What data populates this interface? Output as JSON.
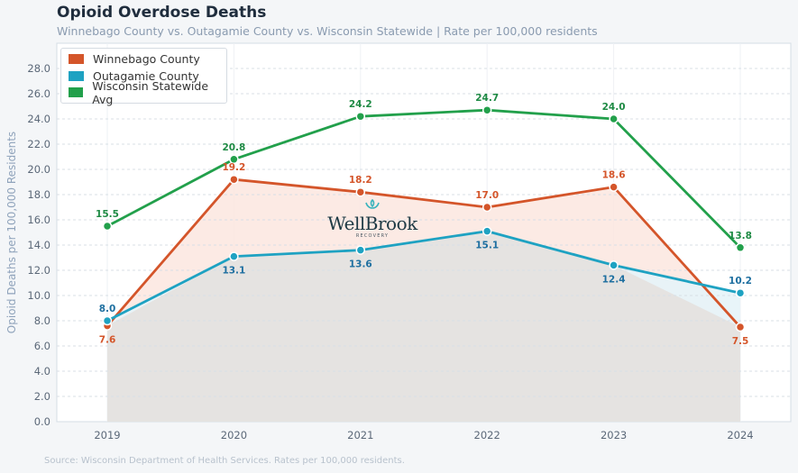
{
  "header": {
    "title": "Opioid Overdose Deaths",
    "subtitle": "Winnebago County vs. Outagamie County vs. Wisconsin Statewide  |  Rate per 100,000 residents"
  },
  "footer": {
    "source": "Source: Wisconsin Department of Health Services. Rates per 100,000 residents."
  },
  "logo": {
    "icon": "lotus-icon",
    "name": "WellBrook",
    "tagline": "RECOVERY"
  },
  "chart_data": {
    "type": "line",
    "title": "Opioid Overdose Deaths",
    "subtitle": "Winnebago County vs. Outagamie County vs. Wisconsin Statewide  |  Rate per 100,000 residents",
    "xlabel": "",
    "ylabel": "Opioid Deaths per 100,000 Residents",
    "categories": [
      "2019",
      "2020",
      "2021",
      "2022",
      "2023",
      "2024"
    ],
    "ylim": [
      0,
      28
    ],
    "yticks": [
      "0.0",
      "2.0",
      "4.0",
      "6.0",
      "8.0",
      "10.0",
      "12.0",
      "14.0",
      "16.0",
      "18.0",
      "20.0",
      "22.0",
      "24.0",
      "26.0",
      "28.0"
    ],
    "grid": true,
    "legend_position": "top-left",
    "series": [
      {
        "name": "Winnebago County",
        "color": "#d4552a",
        "fill": "#fbe6df",
        "label_pos": "mixed",
        "values": [
          7.6,
          19.2,
          18.2,
          17.0,
          18.6,
          7.5
        ]
      },
      {
        "name": "Outagamie County",
        "color": "#1ea2c2",
        "fill": "#e5e4e3",
        "label_pos": "mixed",
        "values": [
          8.0,
          13.1,
          13.6,
          15.1,
          12.4,
          10.2
        ]
      },
      {
        "name": "Wisconsin Statewide Avg",
        "color": "#22a04b",
        "fill": null,
        "label_pos": "above",
        "values": [
          15.5,
          20.8,
          24.2,
          24.7,
          24.0,
          13.8
        ]
      }
    ],
    "label_colors": {
      "Winnebago County": "#d4552a",
      "Outagamie County": "#1e6fa0",
      "Wisconsin Statewide Avg": "#1e8a44"
    }
  }
}
